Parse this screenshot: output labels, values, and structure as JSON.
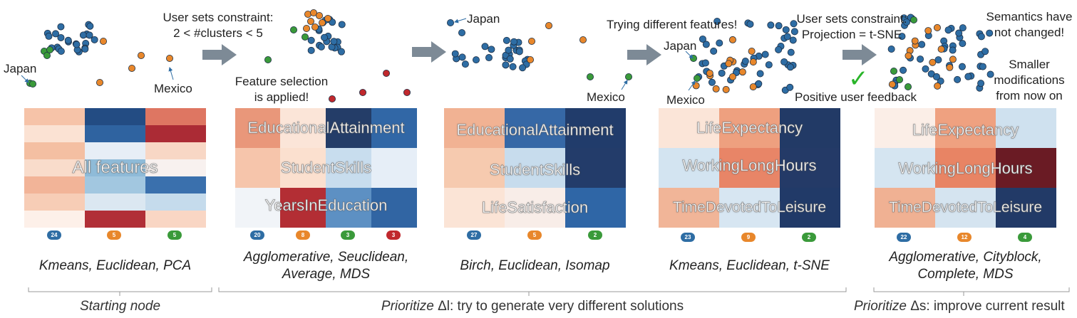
{
  "colors": {
    "blue": "#2e6da4",
    "orange": "#e8872b",
    "green": "#3a9a3a",
    "red": "#c0282d",
    "arrow": "#7d8a96"
  },
  "panels": [
    {
      "algorithm": "Kmeans, Euclidean, PCA",
      "heatmap_label": "All features",
      "badges": [
        "24",
        "5",
        "5"
      ],
      "point_labels": [
        "Japan",
        "Mexico"
      ]
    },
    {
      "annotation": [
        "User sets constraint:",
        "2 < #clusters < 5"
      ],
      "note": [
        "Feature selection",
        "is applied!"
      ],
      "algorithm": [
        "Agglomerative, Seuclidean,",
        "Average, MDS"
      ],
      "heatmap_labels": [
        "EducationalAttainment",
        "StudentSkills",
        "YearsInEducation"
      ],
      "badges": [
        "20",
        "8",
        "3",
        "3"
      ]
    },
    {
      "algorithm": "Birch, Euclidean, Isomap",
      "heatmap_labels": [
        "EducationalAttainment",
        "StudentSkills",
        "LifeSatisfaction"
      ],
      "badges": [
        "27",
        "5",
        "2"
      ],
      "point_labels": [
        "Japan",
        "Mexico"
      ]
    },
    {
      "annotation": "Trying different features!",
      "algorithm": "Kmeans, Euclidean, t-SNE",
      "heatmap_labels": [
        "LifeExpectancy",
        "WorkingLongHours",
        "TimeDevotedToLeisure"
      ],
      "badges": [
        "23",
        "9",
        "2"
      ],
      "point_labels": [
        "Japan",
        "Mexico"
      ]
    },
    {
      "annotation": [
        "User sets constraint:",
        "Projection = t-SNE"
      ],
      "feedback": "Positive user feedback",
      "notes": [
        "Semantics have",
        "not changed!",
        "Smaller",
        "modifications",
        "from now on"
      ],
      "algorithm": [
        "Agglomerative, Cityblock,",
        "Complete, MDS"
      ],
      "heatmap_labels": [
        "LifeExpectancy",
        "WorkingLongHours",
        "TimeDevotedToLeisure"
      ],
      "badges": [
        "22",
        "12",
        "4"
      ]
    }
  ],
  "footer": {
    "starting_node": "Starting node",
    "prioritize_word": "Prioritize",
    "delta_l": "Δl: try to generate very different solutions",
    "delta_s": "Δs: improve current result"
  }
}
